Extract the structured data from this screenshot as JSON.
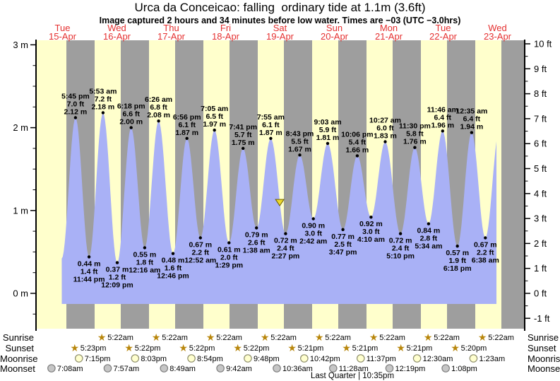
{
  "title": "Urca da Conceicao: falling  ordinary tide at 1.1m (3.6ft)",
  "subtitle": "Image captured 2 hours and 34 minutes before low water. Times are −03 (UTC −3.0hrs)",
  "axes": {
    "left": [
      "3 m",
      "2 m",
      "1 m",
      "0 m"
    ],
    "right": [
      "10 ft",
      "9 ft",
      "8 ft",
      "7 ft",
      "6 ft",
      "5 ft",
      "4 ft",
      "3 ft",
      "2 ft",
      "1 ft",
      "0 ft",
      "-1 ft"
    ]
  },
  "chart_data": {
    "type": "area",
    "unit_left": "m",
    "unit_right": "ft",
    "ylim_m": [
      -0.43,
      3.05
    ],
    "days": [
      {
        "name": "Tue",
        "date": "15-Apr"
      },
      {
        "name": "Wed",
        "date": "16-Apr"
      },
      {
        "name": "Thu",
        "date": "17-Apr"
      },
      {
        "name": "Fri",
        "date": "18-Apr"
      },
      {
        "name": "Sat",
        "date": "19-Apr"
      },
      {
        "name": "Sun",
        "date": "20-Apr"
      },
      {
        "name": "Mon",
        "date": "21-Apr"
      },
      {
        "name": "Tue",
        "date": "22-Apr"
      },
      {
        "name": "Wed",
        "date": "23-Apr"
      }
    ],
    "highs": [
      {
        "day": 0,
        "time": "5:45 pm",
        "ft": "7.0 ft",
        "m": "2.12 m"
      },
      {
        "day": 1,
        "time": "5:53 am",
        "ft": "7.2 ft",
        "m": "2.18 m"
      },
      {
        "day": 1,
        "time": "6:18 pm",
        "ft": "6.6 ft",
        "m": "2.00 m"
      },
      {
        "day": 2,
        "time": "6:26 am",
        "ft": "6.8 ft",
        "m": "2.08 m"
      },
      {
        "day": 2,
        "time": "6:56 pm",
        "ft": "6.1 ft",
        "m": "1.87 m"
      },
      {
        "day": 3,
        "time": "7:05 am",
        "ft": "6.5 ft",
        "m": "1.97 m"
      },
      {
        "day": 3,
        "time": "7:41 pm",
        "ft": "5.7 ft",
        "m": "1.75 m"
      },
      {
        "day": 4,
        "time": "7:55 am",
        "ft": "6.1 ft",
        "m": "1.87 m"
      },
      {
        "day": 4,
        "time": "8:43 pm",
        "ft": "5.5 ft",
        "m": "1.67 m"
      },
      {
        "day": 5,
        "time": "9:03 am",
        "ft": "5.9 ft",
        "m": "1.81 m"
      },
      {
        "day": 5,
        "time": "10:06 pm",
        "ft": "5.4 ft",
        "m": "1.66 m"
      },
      {
        "day": 6,
        "time": "10:27 am",
        "ft": "6.0 ft",
        "m": "1.83 m"
      },
      {
        "day": 6,
        "time": "11:30 pm",
        "ft": "5.8 ft",
        "m": "1.76 m"
      },
      {
        "day": 7,
        "time": "11:46 am",
        "ft": "6.4 ft",
        "m": "1.96 m"
      },
      {
        "day": 8,
        "time": "12:35 am",
        "ft": "6.4 ft",
        "m": "1.94 m"
      }
    ],
    "lows": [
      {
        "day": 0,
        "time": "11:44 pm",
        "ft": "1.4 ft",
        "m": "0.44 m"
      },
      {
        "day": 1,
        "time": "12:09 pm",
        "ft": "1.2 ft",
        "m": "0.37 m"
      },
      {
        "day": 2,
        "time": "12:16 am",
        "ft": "1.8 ft",
        "m": "0.55 m"
      },
      {
        "day": 2,
        "time": "12:46 pm",
        "ft": "1.6 ft",
        "m": "0.48 m"
      },
      {
        "day": 3,
        "time": "12:52 am",
        "ft": "2.2 ft",
        "m": "0.67 m"
      },
      {
        "day": 3,
        "time": "1:29 pm",
        "ft": "2.0 ft",
        "m": "0.61 m"
      },
      {
        "day": 4,
        "time": "1:38 am",
        "ft": "2.6 ft",
        "m": "0.79 m"
      },
      {
        "day": 4,
        "time": "2:27 pm",
        "ft": "2.4 ft",
        "m": "0.72 m"
      },
      {
        "day": 5,
        "time": "2:42 am",
        "ft": "3.0 ft",
        "m": "0.90 m"
      },
      {
        "day": 5,
        "time": "3:47 pm",
        "ft": "2.5 ft",
        "m": "0.77 m"
      },
      {
        "day": 6,
        "time": "4:10 am",
        "ft": "3.0 ft",
        "m": "0.92 m"
      },
      {
        "day": 6,
        "time": "5:10 pm",
        "ft": "2.4 ft",
        "m": "0.72 m"
      },
      {
        "day": 7,
        "time": "5:34 am",
        "ft": "2.8 ft",
        "m": "0.84 m"
      },
      {
        "day": 7,
        "time": "6:18 pm",
        "ft": "1.9 ft",
        "m": "0.57 m"
      },
      {
        "day": 8,
        "time": "6:38 am",
        "ft": "2.2 ft",
        "m": "0.67 m"
      }
    ],
    "curve_edges": {
      "start": {
        "day": 0,
        "time": "11:40 am",
        "m": "0.42 m"
      },
      "end": {
        "day": 8,
        "time": "12:50 pm",
        "m": "1.97 m"
      }
    },
    "marker": {
      "day": 4,
      "time": "11:53 am",
      "level_m": 1.1
    }
  },
  "astro": {
    "row_labels": [
      "Sunrise",
      "Sunset",
      "Moonrise",
      "Moonset"
    ],
    "sunrise": [
      {
        "day": 1,
        "time": "5:22am"
      },
      {
        "day": 2,
        "time": "5:22am"
      },
      {
        "day": 3,
        "time": "5:22am"
      },
      {
        "day": 4,
        "time": "5:22am"
      },
      {
        "day": 5,
        "time": "5:22am"
      },
      {
        "day": 6,
        "time": "5:22am"
      },
      {
        "day": 7,
        "time": "5:22am"
      },
      {
        "day": 8,
        "time": "5:22am"
      }
    ],
    "sunset": [
      {
        "day": 0,
        "time": "5:23pm"
      },
      {
        "day": 1,
        "time": "5:22pm"
      },
      {
        "day": 2,
        "time": "5:22pm"
      },
      {
        "day": 3,
        "time": "5:22pm"
      },
      {
        "day": 4,
        "time": "5:21pm"
      },
      {
        "day": 5,
        "time": "5:21pm"
      },
      {
        "day": 6,
        "time": "5:21pm"
      },
      {
        "day": 7,
        "time": "5:20pm"
      }
    ],
    "moonrise": [
      {
        "day": 0,
        "time": "7:15pm"
      },
      {
        "day": 1,
        "time": "8:03pm"
      },
      {
        "day": 2,
        "time": "8:54pm"
      },
      {
        "day": 3,
        "time": "9:48pm"
      },
      {
        "day": 4,
        "time": "10:42pm"
      },
      {
        "day": 5,
        "time": "11:37pm"
      },
      {
        "day": 7,
        "time": "12:30am"
      },
      {
        "day": 8,
        "time": "1:23am"
      }
    ],
    "moonset": [
      {
        "day": 0,
        "time": "7:08am"
      },
      {
        "day": 1,
        "time": "7:57am"
      },
      {
        "day": 2,
        "time": "8:49am"
      },
      {
        "day": 3,
        "time": "9:42am"
      },
      {
        "day": 4,
        "time": "10:36am"
      },
      {
        "day": 5,
        "time": "11:28am"
      },
      {
        "day": 6,
        "time": "12:19pm"
      },
      {
        "day": 7,
        "time": "1:08pm"
      }
    ],
    "moon_phase": "Last Quarter | 10:35pm"
  },
  "colors": {
    "day_band": "#FFFFCC",
    "night_band": "#9E9E9E",
    "tide_fill": "#A9B1F6",
    "label_red": "#E53030",
    "star_gold": "#B8860B",
    "moonrise_fill": "#FFFFCF",
    "moonrise_stroke": "#8E8E6B",
    "moonset_fill": "#C6C6C6",
    "moonset_stroke": "#7F7F7F",
    "marker_fill": "#EDD92E",
    "marker_stroke": "#6E5F00"
  }
}
